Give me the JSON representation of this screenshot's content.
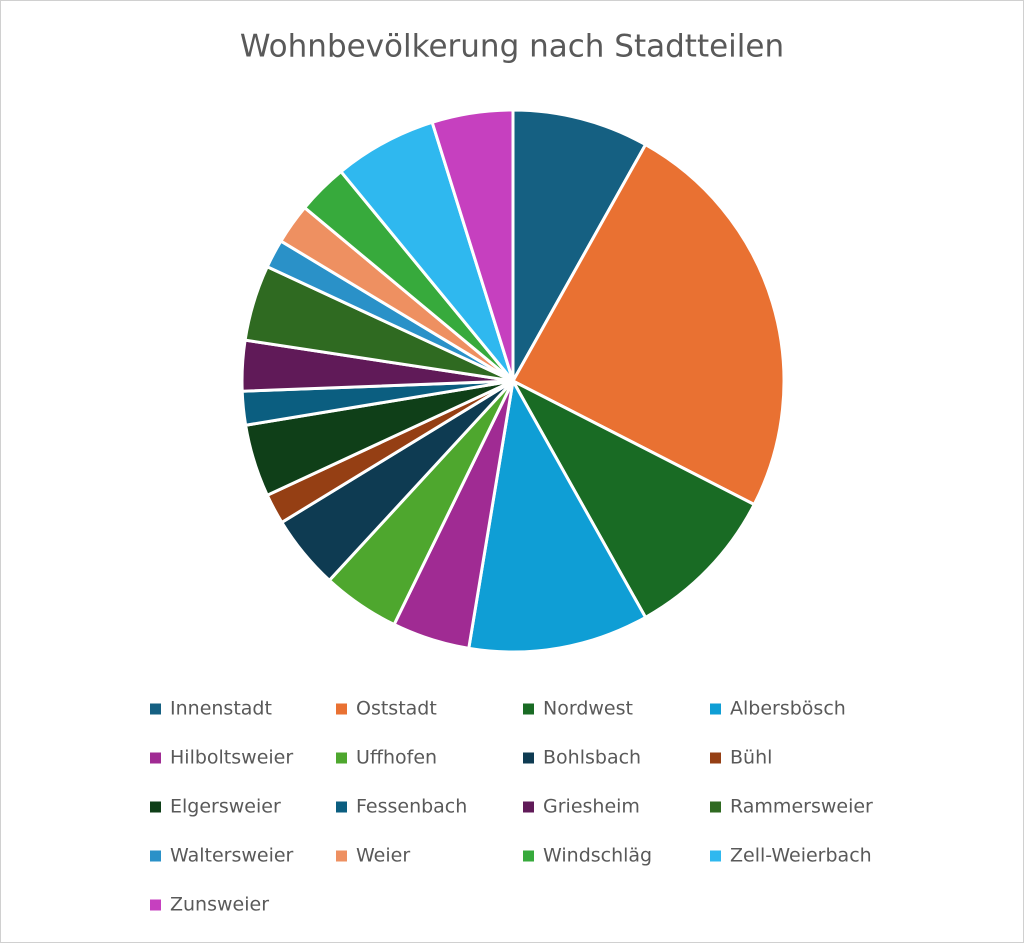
{
  "chart_data": {
    "type": "pie",
    "title": "Wohnbevölkerung nach Stadtteilen",
    "categories": [
      "Innenstadt",
      "Oststadt",
      "Nordwest",
      "Albersbösch",
      "Hilboltsweier",
      "Uffhofen",
      "Bohlsbach",
      "Bühl",
      "Elgersweier",
      "Fessenbach",
      "Griesheim",
      "Rammersweier",
      "Waltersweier",
      "Weier",
      "Windschläg",
      "Zell-Weierbach",
      "Zunsweier"
    ],
    "values": [
      8.1,
      24.3,
      9.3,
      10.7,
      4.6,
      4.6,
      4.4,
      1.8,
      4.3,
      2.0,
      3.0,
      4.5,
      1.7,
      2.4,
      3.0,
      6.1,
      4.8
    ],
    "colors": [
      "#156082",
      "#e97132",
      "#196b24",
      "#0f9ed5",
      "#a02b93",
      "#4ea72e",
      "#0e3b52",
      "#953f14",
      "#0f3f18",
      "#0b5e80",
      "#601a58",
      "#2f6a21",
      "#2a91c8",
      "#ee9061",
      "#37aa3c",
      "#2fb8ef",
      "#c640bf"
    ]
  }
}
